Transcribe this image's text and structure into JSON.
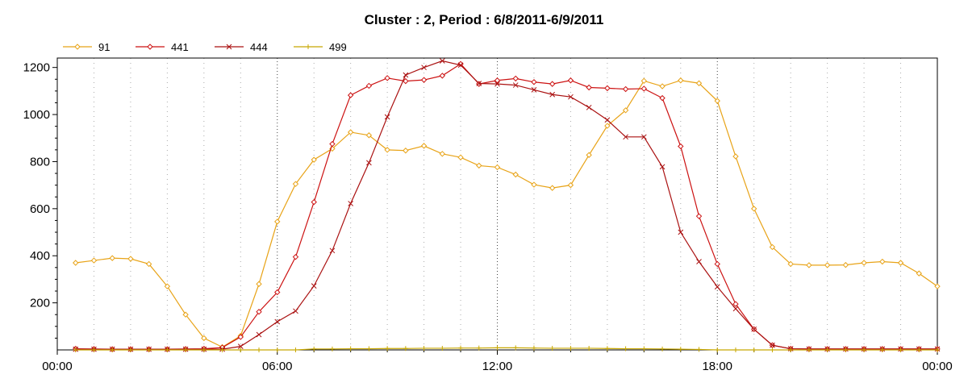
{
  "chart_data": {
    "type": "line",
    "title": "Cluster : 2, Period : 6/8/2011-6/9/2011",
    "xlabel": "",
    "ylabel": "",
    "x_unit": "hours",
    "xlim": [
      0,
      24
    ],
    "ylim": [
      0,
      1240
    ],
    "x_ticks": [
      {
        "value": 0,
        "label": "00:00"
      },
      {
        "value": 6,
        "label": "06:00"
      },
      {
        "value": 12,
        "label": "12:00"
      },
      {
        "value": 18,
        "label": "18:00"
      },
      {
        "value": 24,
        "label": "00:00"
      }
    ],
    "y_ticks": [
      200,
      400,
      600,
      800,
      1000,
      1200
    ],
    "grid": true,
    "legend_position": "top-left",
    "x": [
      0.5,
      1,
      1.5,
      2,
      2.5,
      3,
      3.5,
      4,
      4.5,
      5,
      5.5,
      6,
      6.5,
      7,
      7.5,
      8,
      8.5,
      9,
      9.5,
      10,
      10.5,
      11,
      11.5,
      12,
      12.5,
      13,
      13.5,
      14,
      14.5,
      15,
      15.5,
      16,
      16.5,
      17,
      17.5,
      18,
      18.5,
      19,
      19.5,
      20,
      20.5,
      21,
      21.5,
      22,
      22.5,
      23,
      23.5,
      24
    ],
    "series": [
      {
        "name": "91",
        "color": "#e8a317",
        "marker": "diamond",
        "values": [
          370,
          380,
          390,
          387,
          365,
          270,
          150,
          50,
          12,
          60,
          280,
          545,
          705,
          808,
          855,
          925,
          912,
          850,
          847,
          867,
          833,
          818,
          783,
          776,
          745,
          702,
          688,
          700,
          828,
          952,
          1018,
          1143,
          1120,
          1145,
          1133,
          1058,
          822,
          600,
          437,
          365,
          360,
          360,
          361,
          370,
          375,
          370,
          325,
          270
        ]
      },
      {
        "name": "441",
        "color": "#cc1111",
        "marker": "diamond",
        "values": [
          5,
          4,
          3,
          3,
          3,
          3,
          4,
          5,
          10,
          55,
          162,
          245,
          395,
          628,
          875,
          1082,
          1122,
          1155,
          1142,
          1147,
          1165,
          1215,
          1130,
          1145,
          1153,
          1138,
          1130,
          1145,
          1115,
          1112,
          1108,
          1110,
          1070,
          865,
          568,
          365,
          195,
          88,
          20,
          5,
          4,
          4,
          4,
          4,
          4,
          4,
          4,
          4
        ]
      },
      {
        "name": "444",
        "color": "#aa1111",
        "marker": "x",
        "values": [
          3,
          3,
          3,
          3,
          3,
          3,
          3,
          3,
          3,
          15,
          65,
          120,
          165,
          272,
          422,
          622,
          795,
          990,
          1168,
          1200,
          1228,
          1210,
          1132,
          1130,
          1125,
          1105,
          1085,
          1075,
          1030,
          977,
          905,
          905,
          778,
          500,
          375,
          268,
          175,
          88,
          20,
          5,
          4,
          4,
          4,
          4,
          4,
          4,
          4,
          4
        ]
      },
      {
        "name": "499",
        "color": "#c8a800",
        "marker": "plus",
        "values": [
          0,
          0,
          0,
          0,
          0,
          0,
          0,
          0,
          0,
          0,
          0,
          0,
          0,
          4,
          4,
          5,
          5,
          6,
          6,
          7,
          7,
          8,
          8,
          9,
          9,
          8,
          7,
          7,
          7,
          6,
          5,
          5,
          4,
          3,
          2,
          0,
          0,
          0,
          0,
          0,
          0,
          0,
          0,
          0,
          0,
          0,
          0,
          0
        ]
      }
    ]
  }
}
